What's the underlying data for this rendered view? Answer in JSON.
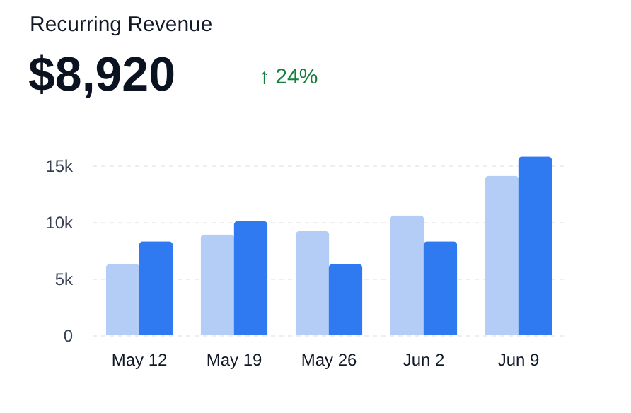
{
  "chart_data": {
    "type": "bar",
    "title": "Recurring Revenue",
    "subtitle": "$8,920",
    "annotations": [
      "↑ 24%"
    ],
    "categories": [
      "May 12",
      "May 19",
      "May 26",
      "Jun 2",
      "Jun 9"
    ],
    "series": [
      {
        "color": "#b3cdf7",
        "values": [
          6300,
          8900,
          9200,
          10600,
          14100
        ]
      },
      {
        "color": "#2f7af0",
        "values": [
          8300,
          10100,
          6300,
          8300,
          15800
        ]
      }
    ],
    "ylim": [
      0,
      16000
    ],
    "yticks": [
      0,
      {
        "value": 5000,
        "label": "5k"
      },
      {
        "value": 10000,
        "label": "10k"
      },
      {
        "value": 15000,
        "label": "15k"
      }
    ],
    "grid": "y"
  }
}
